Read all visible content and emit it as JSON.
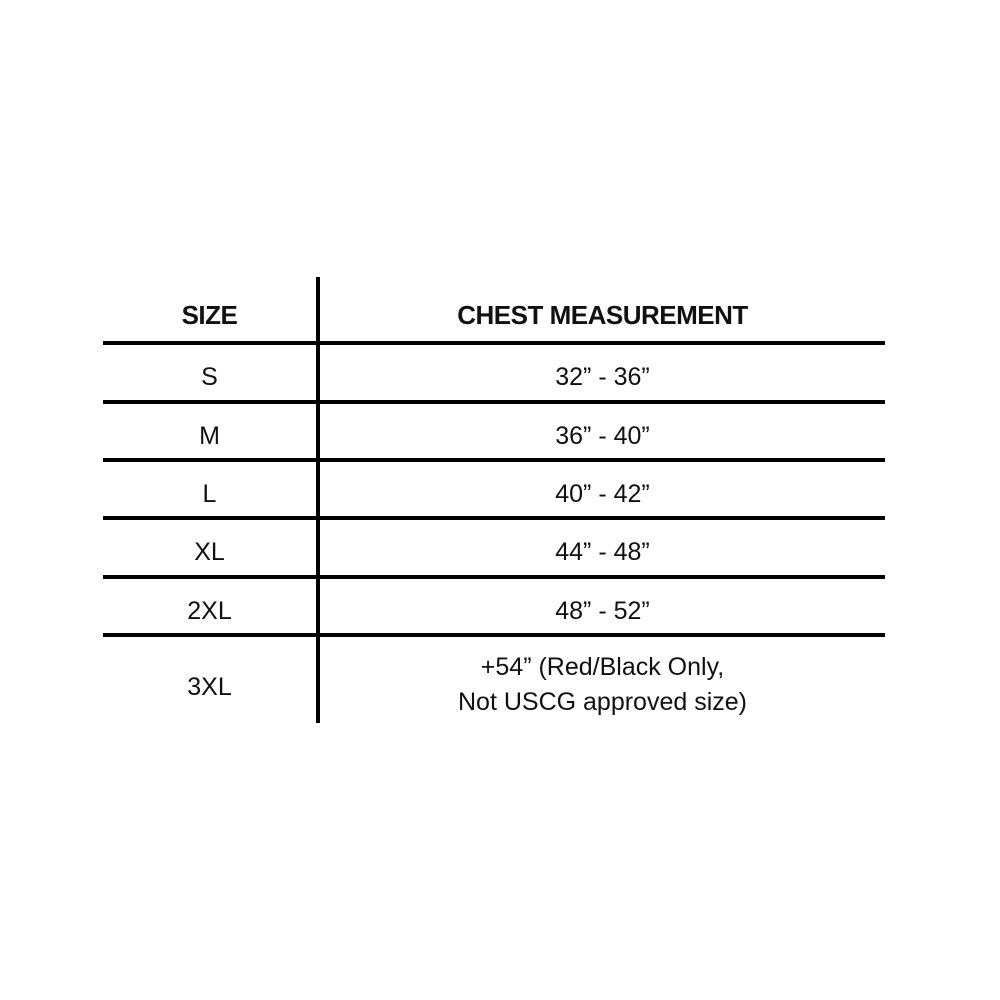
{
  "table": {
    "headers": [
      "SIZE",
      "CHEST MEASUREMENT"
    ],
    "rows": [
      {
        "size": "S",
        "chest": "32” - 36”"
      },
      {
        "size": "M",
        "chest": "36” - 40”"
      },
      {
        "size": "L",
        "chest": "40” - 42”"
      },
      {
        "size": "XL",
        "chest": "44” - 48”"
      },
      {
        "size": "2XL",
        "chest": "48” - 52”"
      },
      {
        "size": "3XL",
        "chest": "+54” (Red/Black Only,",
        "chest_line2": "Not USCG approved size)"
      }
    ]
  }
}
